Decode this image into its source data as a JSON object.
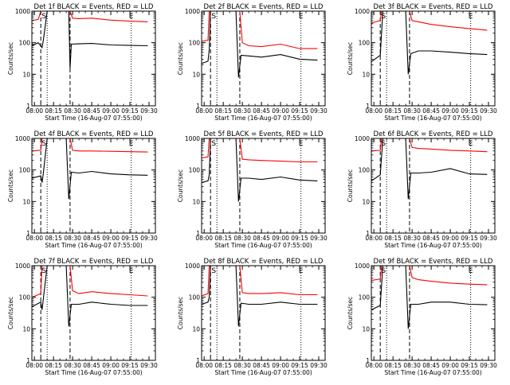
{
  "common": {
    "ylabel": "Counts/sec",
    "xlabel": "Start Time (16-Aug-07 07:55:00)",
    "x_ticks": [
      "08:00",
      "08:15",
      "08:30",
      "08:45",
      "09:00",
      "09:15",
      "09:30"
    ],
    "y_ticks": [
      "1",
      "10",
      "100",
      "1000"
    ],
    "marker_S": "S",
    "marker_E": "E",
    "series_colors": {
      "events": "#000000",
      "lld": "#ff0000"
    }
  },
  "chart_data": [
    {
      "type": "line",
      "title": "Det 1f BLACK = Events, RED = LLD",
      "yscale": "log",
      "ylim": [
        1,
        1000
      ],
      "series": [
        {
          "color": "#ff0000",
          "x": [
            "07:58",
            "08:03",
            "08:05",
            "08:10",
            "08:13",
            "08:15",
            "08:20",
            "08:25",
            "08:28",
            "08:30",
            "08:35",
            "08:45",
            "09:00",
            "09:15",
            "09:29"
          ],
          "values": [
            500,
            550,
            1000,
            1000,
            1000,
            1000,
            1000,
            1000,
            1000,
            600,
            580,
            600,
            520,
            480,
            460
          ]
        },
        {
          "color": "#000000",
          "x": [
            "07:58",
            "08:03",
            "08:06",
            "08:07",
            "08:10",
            "08:15",
            "08:20",
            "08:27",
            "08:28",
            "08:29",
            "08:35",
            "08:45",
            "09:00",
            "09:15",
            "09:29"
          ],
          "values": [
            80,
            100,
            70,
            120,
            1000,
            1000,
            1000,
            1000,
            15,
            90,
            92,
            95,
            85,
            82,
            80
          ]
        }
      ]
    },
    {
      "type": "line",
      "title": "Det 2f BLACK = Events, RED = LLD",
      "yscale": "log",
      "ylim": [
        1,
        1000
      ],
      "series": [
        {
          "color": "#ff0000",
          "x": [
            "07:58",
            "08:03",
            "08:04",
            "08:06",
            "08:10",
            "08:15",
            "08:20",
            "08:25",
            "08:28",
            "08:30",
            "08:35",
            "08:45",
            "09:00",
            "09:15",
            "09:29"
          ],
          "values": [
            110,
            120,
            1000,
            1000,
            1000,
            1000,
            1000,
            1000,
            1000,
            100,
            80,
            75,
            90,
            65,
            65
          ]
        },
        {
          "color": "#000000",
          "x": [
            "07:58",
            "08:03",
            "08:04",
            "08:05",
            "08:10",
            "08:15",
            "08:20",
            "08:25",
            "08:27",
            "08:29",
            "08:35",
            "08:45",
            "09:00",
            "09:15",
            "09:29"
          ],
          "values": [
            22,
            26,
            60,
            1000,
            1000,
            1000,
            1000,
            1000,
            8,
            40,
            38,
            35,
            42,
            30,
            28
          ]
        }
      ]
    },
    {
      "type": "line",
      "title": "Det 3f BLACK = Events, RED = LLD",
      "yscale": "log",
      "ylim": [
        1,
        1000
      ],
      "series": [
        {
          "color": "#ff0000",
          "x": [
            "07:58",
            "08:05",
            "08:06",
            "08:10",
            "08:15",
            "08:20",
            "08:25",
            "08:28",
            "08:30",
            "08:35",
            "08:45",
            "09:00",
            "09:15",
            "09:29"
          ],
          "values": [
            420,
            500,
            1000,
            1000,
            1000,
            1000,
            1000,
            1000,
            500,
            460,
            380,
            320,
            280,
            250
          ]
        },
        {
          "color": "#000000",
          "x": [
            "07:58",
            "08:05",
            "08:07",
            "08:08",
            "08:10",
            "08:15",
            "08:20",
            "08:25",
            "08:27",
            "08:29",
            "08:35",
            "08:45",
            "09:00",
            "09:15",
            "09:29"
          ],
          "values": [
            25,
            40,
            1000,
            1000,
            1000,
            1000,
            1000,
            1000,
            10,
            45,
            55,
            55,
            50,
            45,
            42
          ]
        }
      ]
    },
    {
      "type": "line",
      "title": "Det 4f BLACK = Events, RED = LLD",
      "yscale": "log",
      "ylim": [
        1,
        1000
      ],
      "series": [
        {
          "color": "#ff0000",
          "x": [
            "07:58",
            "08:05",
            "08:06",
            "08:10",
            "08:15",
            "08:20",
            "08:25",
            "08:28",
            "08:30",
            "08:35",
            "08:45",
            "09:00",
            "09:15",
            "09:29"
          ],
          "values": [
            400,
            420,
            1000,
            1000,
            1000,
            1000,
            1000,
            1000,
            420,
            400,
            400,
            390,
            380,
            370
          ]
        },
        {
          "color": "#000000",
          "x": [
            "07:58",
            "08:05",
            "08:06",
            "08:07",
            "08:10",
            "08:15",
            "08:20",
            "08:25",
            "08:27",
            "08:29",
            "08:35",
            "08:45",
            "09:00",
            "09:15",
            "09:29"
          ],
          "values": [
            55,
            65,
            40,
            80,
            1000,
            1000,
            1000,
            1000,
            12,
            85,
            80,
            90,
            75,
            70,
            68
          ]
        }
      ]
    },
    {
      "type": "line",
      "title": "Det 5f BLACK = Events, RED = LLD",
      "yscale": "log",
      "ylim": [
        1,
        1000
      ],
      "series": [
        {
          "color": "#ff0000",
          "x": [
            "07:58",
            "08:03",
            "08:04",
            "08:06",
            "08:10",
            "08:15",
            "08:20",
            "08:25",
            "08:28",
            "08:30",
            "08:35",
            "08:45",
            "09:00",
            "09:15",
            "09:29"
          ],
          "values": [
            240,
            260,
            1000,
            1000,
            1000,
            1000,
            1000,
            1000,
            1000,
            220,
            210,
            200,
            190,
            180,
            180
          ]
        },
        {
          "color": "#000000",
          "x": [
            "07:58",
            "08:03",
            "08:04",
            "08:05",
            "08:10",
            "08:15",
            "08:20",
            "08:25",
            "08:27",
            "08:29",
            "08:35",
            "08:45",
            "09:00",
            "09:15",
            "09:29"
          ],
          "values": [
            40,
            45,
            70,
            1000,
            1000,
            1000,
            1000,
            1000,
            10,
            55,
            55,
            50,
            60,
            48,
            45
          ]
        }
      ]
    },
    {
      "type": "line",
      "title": "Det 6f BLACK = Events, RED = LLD",
      "yscale": "log",
      "ylim": [
        1,
        1000
      ],
      "series": [
        {
          "color": "#ff0000",
          "x": [
            "07:58",
            "08:05",
            "08:06",
            "08:10",
            "08:15",
            "08:20",
            "08:25",
            "08:28",
            "08:30",
            "08:35",
            "08:45",
            "09:00",
            "09:15",
            "09:29"
          ],
          "values": [
            400,
            420,
            1000,
            1000,
            1000,
            1000,
            1000,
            1000,
            520,
            480,
            460,
            420,
            400,
            380
          ]
        },
        {
          "color": "#000000",
          "x": [
            "07:58",
            "08:05",
            "08:07",
            "08:08",
            "08:10",
            "08:15",
            "08:20",
            "08:25",
            "08:27",
            "08:29",
            "08:35",
            "08:45",
            "09:00",
            "09:15",
            "09:29"
          ],
          "values": [
            45,
            70,
            1000,
            1000,
            1000,
            1000,
            1000,
            1000,
            12,
            80,
            80,
            85,
            110,
            75,
            72
          ]
        }
      ]
    },
    {
      "type": "line",
      "title": "Det 7f BLACK = Events, RED = LLD",
      "yscale": "log",
      "ylim": [
        1,
        1000
      ],
      "series": [
        {
          "color": "#ff0000",
          "x": [
            "07:58",
            "08:05",
            "08:06",
            "08:10",
            "08:15",
            "08:20",
            "08:25",
            "08:28",
            "08:30",
            "08:35",
            "08:45",
            "09:00",
            "09:15",
            "09:29"
          ],
          "values": [
            100,
            130,
            1000,
            1000,
            1000,
            1000,
            1000,
            1000,
            160,
            130,
            150,
            130,
            120,
            110
          ]
        },
        {
          "color": "#000000",
          "x": [
            "07:58",
            "08:05",
            "08:06",
            "08:07",
            "08:10",
            "08:15",
            "08:20",
            "08:25",
            "08:27",
            "08:29",
            "08:35",
            "08:45",
            "09:00",
            "09:15",
            "09:29"
          ],
          "values": [
            50,
            70,
            40,
            90,
            1000,
            1000,
            1000,
            1000,
            12,
            60,
            60,
            70,
            60,
            55,
            55
          ]
        }
      ]
    },
    {
      "type": "line",
      "title": "Det 8f BLACK = Events, RED = LLD",
      "yscale": "log",
      "ylim": [
        1,
        1000
      ],
      "series": [
        {
          "color": "#ff0000",
          "x": [
            "07:58",
            "08:03",
            "08:04",
            "08:06",
            "08:10",
            "08:15",
            "08:20",
            "08:25",
            "08:28",
            "08:30",
            "08:35",
            "08:45",
            "09:00",
            "09:15",
            "09:29"
          ],
          "values": [
            110,
            130,
            1000,
            1000,
            1000,
            1000,
            1000,
            1000,
            1000,
            140,
            130,
            130,
            140,
            120,
            120
          ]
        },
        {
          "color": "#000000",
          "x": [
            "07:58",
            "08:03",
            "08:04",
            "08:05",
            "08:10",
            "08:15",
            "08:20",
            "08:25",
            "08:27",
            "08:29",
            "08:35",
            "08:45",
            "09:00",
            "09:15",
            "09:29"
          ],
          "values": [
            60,
            70,
            100,
            1000,
            1000,
            1000,
            1000,
            1000,
            12,
            65,
            60,
            60,
            70,
            60,
            60
          ]
        }
      ]
    },
    {
      "type": "line",
      "title": "Det 9f BLACK = Events, RED = LLD",
      "yscale": "log",
      "ylim": [
        1,
        1000
      ],
      "series": [
        {
          "color": "#ff0000",
          "x": [
            "07:58",
            "08:05",
            "08:06",
            "08:10",
            "08:15",
            "08:20",
            "08:25",
            "08:28",
            "08:30",
            "08:35",
            "08:45",
            "09:00",
            "09:15",
            "09:29"
          ],
          "values": [
            340,
            380,
            1000,
            1000,
            1000,
            1000,
            1000,
            1000,
            420,
            360,
            320,
            280,
            260,
            250
          ]
        },
        {
          "color": "#000000",
          "x": [
            "07:58",
            "08:05",
            "08:07",
            "08:08",
            "08:10",
            "08:15",
            "08:20",
            "08:25",
            "08:27",
            "08:29",
            "08:35",
            "08:45",
            "09:00",
            "09:15",
            "09:29"
          ],
          "values": [
            40,
            55,
            1000,
            1000,
            1000,
            1000,
            1000,
            1000,
            10,
            60,
            60,
            70,
            70,
            60,
            58
          ]
        }
      ]
    }
  ]
}
